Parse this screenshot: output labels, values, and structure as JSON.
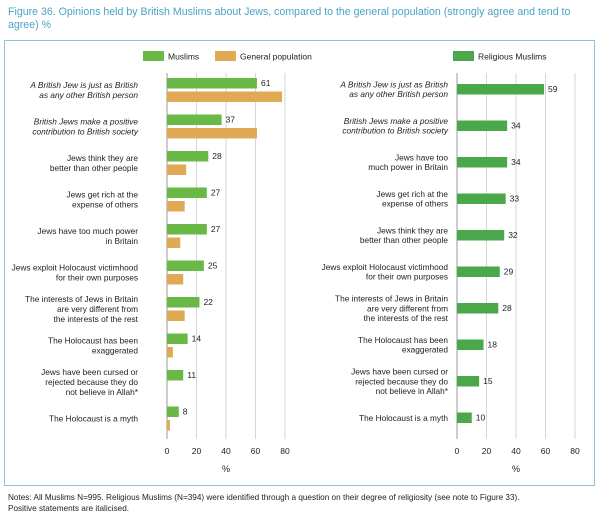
{
  "figure": {
    "title": "Figure 36.  Opinions held by British Muslims about Jews, compared to the general population (strongly agree and tend to agree) %",
    "notes_line1": "Notes: All Muslims N=995. Religious Muslims (N=394) were identified through a question on their degree of religiosity (see note to Figure 33).",
    "notes_line2": "Positive statements are italicised."
  },
  "chart_data": [
    {
      "type": "bar",
      "orientation": "horizontal",
      "title": "",
      "xlabel": "%",
      "ylabel": "",
      "xlim": [
        0,
        80
      ],
      "xticks": [
        0,
        20,
        40,
        60,
        80
      ],
      "grid": true,
      "legend_position": "top",
      "categories": [
        {
          "lines": [
            "A British Jew is just as British",
            "as any other British person"
          ],
          "italic": true
        },
        {
          "lines": [
            "British Jews make a positive",
            "contribution to British society"
          ],
          "italic": true
        },
        {
          "lines": [
            "Jews think they are",
            "better than other people"
          ],
          "italic": false
        },
        {
          "lines": [
            "Jews get rich at the",
            "expense of others"
          ],
          "italic": false
        },
        {
          "lines": [
            "Jews have too much power",
            "in Britain"
          ],
          "italic": false
        },
        {
          "lines": [
            "Jews exploit Holocaust victimhood",
            "for their own purposes"
          ],
          "italic": false
        },
        {
          "lines": [
            "The interests of Jews in Britain",
            "are very different from",
            "the interests of the rest"
          ],
          "italic": false
        },
        {
          "lines": [
            "The Holocaust has been",
            "exaggerated"
          ],
          "italic": false
        },
        {
          "lines": [
            "Jews have been cursed or",
            "rejected because they do",
            "not believe in Allah*"
          ],
          "italic": false
        },
        {
          "lines": [
            "The Holocaust is a myth"
          ],
          "italic": false
        }
      ],
      "series": [
        {
          "name": "Muslims",
          "color": "#6ab846",
          "labeled": true,
          "values": [
            61,
            37,
            28,
            27,
            27,
            25,
            22,
            14,
            11,
            8
          ]
        },
        {
          "name": "General population",
          "color": "#e0aa55",
          "labeled": false,
          "values": [
            78,
            61,
            13,
            12,
            9,
            11,
            12,
            4,
            0,
            2
          ]
        }
      ]
    },
    {
      "type": "bar",
      "orientation": "horizontal",
      "title": "",
      "xlabel": "%",
      "ylabel": "",
      "xlim": [
        0,
        80
      ],
      "xticks": [
        0,
        20,
        40,
        60,
        80
      ],
      "grid": true,
      "legend_position": "top",
      "categories": [
        {
          "lines": [
            "A British Jew is just as British",
            "as any other British person"
          ],
          "italic": true
        },
        {
          "lines": [
            "British Jews make a positive",
            "contribution to British society"
          ],
          "italic": true
        },
        {
          "lines": [
            "Jews have too",
            "much power in Britain"
          ],
          "italic": false
        },
        {
          "lines": [
            "Jews get rich at the",
            "expense of others"
          ],
          "italic": false
        },
        {
          "lines": [
            "Jews think they are",
            "better than other people"
          ],
          "italic": false
        },
        {
          "lines": [
            "Jews exploit Holocaust victimhood",
            "for their own purposes"
          ],
          "italic": false
        },
        {
          "lines": [
            "The interests of Jews in Britain",
            "are very different from",
            "the interests of the rest"
          ],
          "italic": false
        },
        {
          "lines": [
            "The Holocaust has been",
            "exaggerated"
          ],
          "italic": false
        },
        {
          "lines": [
            "Jews have been cursed or",
            "rejected because they do",
            "not believe in Allah*"
          ],
          "italic": false
        },
        {
          "lines": [
            "The Holocaust is a myth"
          ],
          "italic": false
        }
      ],
      "series": [
        {
          "name": "Religious Muslims",
          "color": "#4aa84a",
          "labeled": true,
          "values": [
            59,
            34,
            34,
            33,
            32,
            29,
            28,
            18,
            15,
            10
          ]
        }
      ]
    }
  ]
}
